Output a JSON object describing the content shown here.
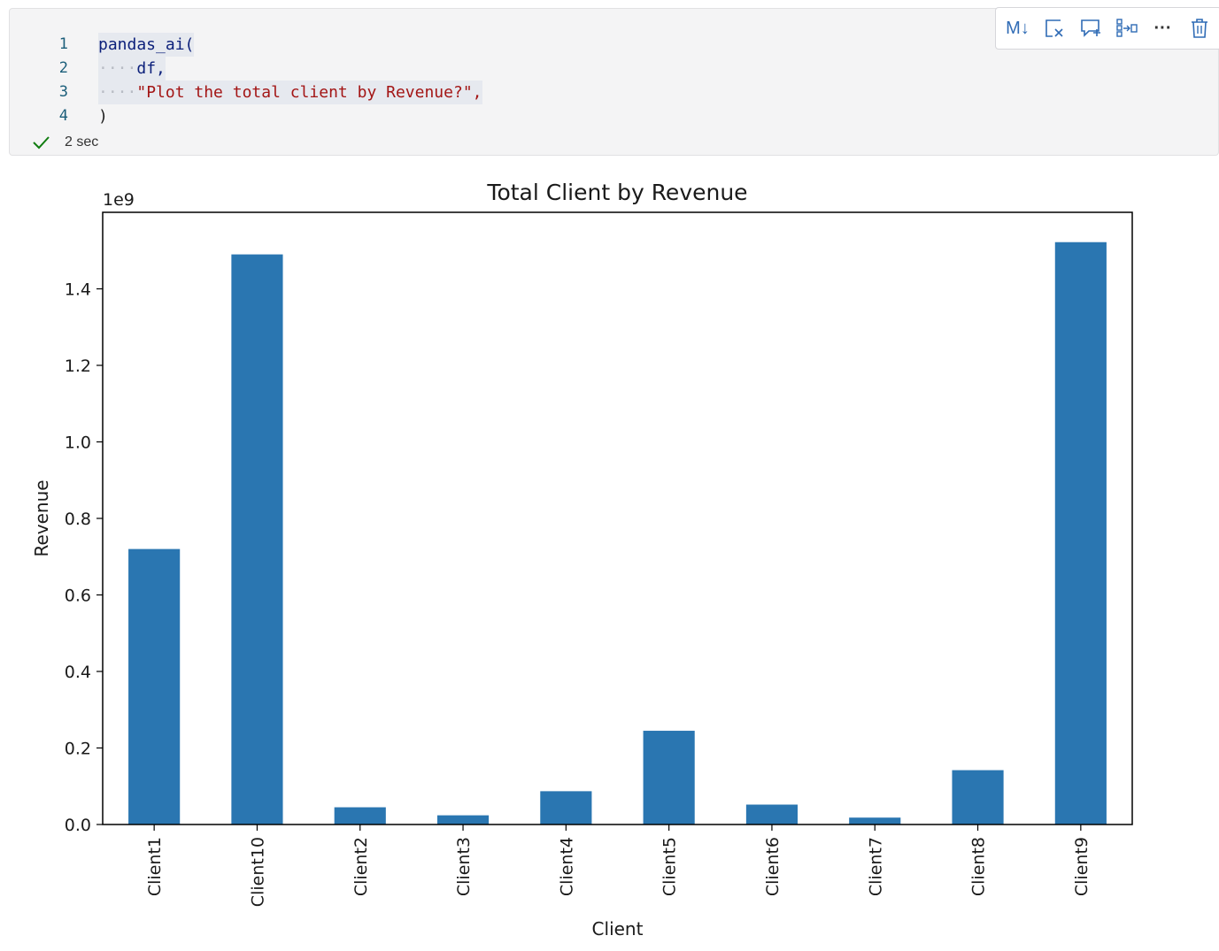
{
  "code_cell": {
    "lines": [
      {
        "number": "1",
        "text": "pandas_ai("
      },
      {
        "number": "2",
        "text": "df,"
      },
      {
        "number": "3",
        "text": "\"Plot the total client by Revenue?\","
      },
      {
        "number": "4",
        "text": ")"
      }
    ],
    "status": {
      "icon": "check-icon",
      "duration": "2 sec",
      "color": "#107c10"
    }
  },
  "toolbar": {
    "buttons": [
      {
        "name": "markdown-button",
        "icon": "markdown-icon",
        "label": "M↓"
      },
      {
        "name": "clear-output-button",
        "icon": "clear-output-icon"
      },
      {
        "name": "add-comment-button",
        "icon": "comment-add-icon"
      },
      {
        "name": "split-cell-button",
        "icon": "split-cell-icon"
      },
      {
        "name": "more-button",
        "icon": "ellipsis-icon",
        "label": "···"
      },
      {
        "name": "delete-button",
        "icon": "trash-icon"
      }
    ],
    "accent": "#2f6bb5"
  },
  "chart_data": {
    "type": "bar",
    "title": "Total Client by Revenue",
    "xlabel": "Client",
    "ylabel": "Revenue",
    "offset_label": "1e9",
    "categories": [
      "Client1",
      "Client10",
      "Client2",
      "Client3",
      "Client4",
      "Client5",
      "Client6",
      "Client7",
      "Client8",
      "Client9"
    ],
    "values": [
      720000000,
      1490000000,
      45000000,
      24000000,
      87000000,
      245000000,
      52000000,
      18000000,
      142000000,
      1522000000
    ],
    "ylim": [
      0,
      1600000000
    ],
    "yticks": [
      0,
      200000000,
      400000000,
      600000000,
      800000000,
      1000000000,
      1200000000,
      1400000000
    ],
    "ytick_labels": [
      "0.0",
      "0.2",
      "0.4",
      "0.6",
      "0.8",
      "1.0",
      "1.2",
      "1.4"
    ],
    "bar_color": "#2a76b1",
    "grid": false
  }
}
